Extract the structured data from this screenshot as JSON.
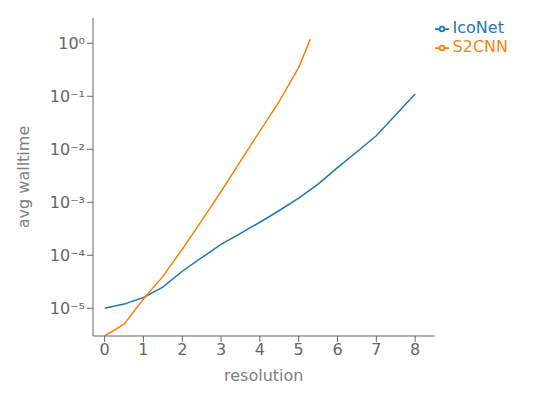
{
  "chart_data": {
    "type": "line",
    "xlabel": "resolution",
    "ylabel": "avg walltime",
    "log": "y",
    "series": [
      {
        "name": "IcoNet",
        "color": "#1f77b4",
        "x": [
          0,
          0.5,
          1,
          1.5,
          2,
          2.5,
          3,
          3.5,
          4,
          4.5,
          5,
          5.5,
          6,
          6.5,
          7,
          7.5,
          8
        ],
        "values": [
          1e-05,
          1.2e-05,
          1.6e-05,
          2.5e-05,
          5e-05,
          9e-05,
          0.00016,
          0.00026,
          0.00042,
          0.0007,
          0.0012,
          0.0022,
          0.0045,
          0.009,
          0.018,
          0.045,
          0.11
        ]
      },
      {
        "name": "S2CNN",
        "color": "#ff7f0e",
        "x": [
          0,
          0.5,
          1,
          1.5,
          2,
          2.5,
          3,
          3.5,
          4,
          4.5,
          5,
          5.3
        ],
        "values": [
          3e-06,
          5e-06,
          1.5e-05,
          4e-05,
          0.00013,
          0.00045,
          0.0016,
          0.006,
          0.022,
          0.08,
          0.35,
          1.2
        ]
      }
    ],
    "xlim": [
      -0.3,
      8.5
    ],
    "xticks": [
      0,
      1,
      2,
      3,
      4,
      5,
      6,
      7,
      8
    ],
    "ylim": [
      3e-06,
      3.0
    ],
    "yticks": [
      {
        "value": 1e-05,
        "label": "10⁻⁵"
      },
      {
        "value": 0.0001,
        "label": "10⁻⁴"
      },
      {
        "value": 0.001,
        "label": "10⁻³"
      },
      {
        "value": 0.01,
        "label": "10⁻²"
      },
      {
        "value": 0.1,
        "label": "10⁻¹"
      },
      {
        "value": 1,
        "label": "10⁰"
      }
    ],
    "grid": false,
    "legend": "upper right"
  }
}
